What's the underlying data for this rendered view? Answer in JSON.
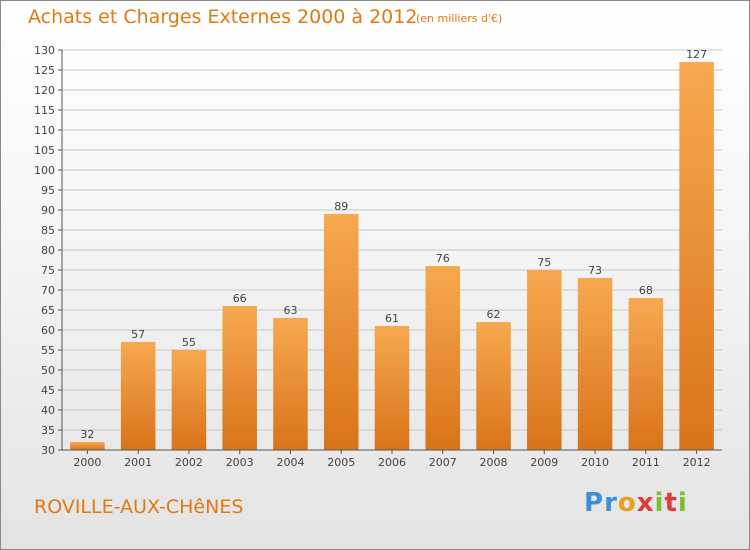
{
  "header": {
    "title": "Achats et Charges Externes 2000 à 2012",
    "subtitle": "(en milliers d'€)"
  },
  "footer": {
    "commune": "ROVILLE-AUX-CHêNES",
    "logo_letters": [
      "P",
      "r",
      "o",
      "x",
      "i",
      "t",
      "i"
    ],
    "logo_colors": [
      "#3a8fd6",
      "#3a8fd6",
      "#e8a020",
      "#e23a3a",
      "#7bbf2a",
      "#e23a3a",
      "#7bbf2a"
    ]
  },
  "chart_data": {
    "type": "bar",
    "categories": [
      "2000",
      "2001",
      "2002",
      "2003",
      "2004",
      "2005",
      "2006",
      "2007",
      "2008",
      "2009",
      "2010",
      "2011",
      "2012"
    ],
    "values": [
      32,
      57,
      55,
      66,
      63,
      89,
      61,
      76,
      62,
      75,
      73,
      68,
      127
    ],
    "ylim": [
      30,
      130
    ],
    "yticks": [
      30,
      35,
      40,
      45,
      50,
      55,
      60,
      65,
      70,
      75,
      80,
      85,
      90,
      95,
      100,
      105,
      110,
      115,
      120,
      125,
      130
    ],
    "grid": true,
    "bar_color_top": "#f7a94f",
    "bar_color_bottom": "#d9731a",
    "grid_color": "#c8c8c8"
  }
}
